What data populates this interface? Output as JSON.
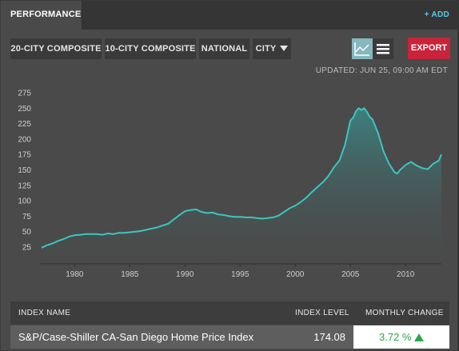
{
  "header": {
    "tab_label": "PERFORMANCE",
    "add_label": "+ ADD"
  },
  "toolbar": {
    "btn_20city": "20-CITY COMPOSITE",
    "btn_10city": "10-CITY COMPOSITE",
    "btn_national": "NATIONAL",
    "btn_city": "CITY",
    "view_chart_icon": "line-chart-icon",
    "view_list_icon": "list-icon",
    "export_label": "EXPORT"
  },
  "updated_text": "UPDATED: JUN 25, 09:00 AM EDT",
  "colors": {
    "line": "#3cc6c0",
    "export": "#c9243a",
    "positive": "#2aa74a",
    "accent": "#5ec8e8"
  },
  "chart_data": {
    "type": "area",
    "x_ticks": [
      "1980",
      "1985",
      "1990",
      "1995",
      "2000",
      "2005",
      "2010"
    ],
    "y_ticks": [
      "25",
      "50",
      "75",
      "100",
      "125",
      "150",
      "175",
      "200",
      "225",
      "250",
      "275"
    ],
    "xlim": [
      1977,
      2013.25
    ],
    "ylim": [
      20,
      275
    ],
    "series": [
      {
        "x": [
          1977,
          1977.5,
          1978,
          1978.5,
          1979,
          1979.5,
          1980,
          1980.5,
          1981,
          1981.5,
          1982,
          1982.5,
          1983,
          1983.5,
          1984,
          1984.5,
          1985,
          1985.5,
          1986,
          1986.5,
          1987,
          1987.5,
          1988,
          1988.5,
          1989,
          1989.5,
          1990,
          1990.5,
          1991,
          1991.5,
          1992,
          1992.5,
          1993,
          1993.5,
          1994,
          1994.5,
          1995,
          1995.5,
          1996,
          1996.5,
          1997,
          1997.5,
          1998,
          1998.5,
          1999,
          1999.5,
          2000,
          2000.5,
          2001,
          2001.5,
          2002,
          2002.5,
          2003,
          2003.5,
          2004,
          2004.5,
          2005,
          2005.25,
          2005.5,
          2005.75,
          2006,
          2006.25,
          2006.5,
          2006.75,
          2007,
          2007.5,
          2008,
          2008.5,
          2009,
          2009.25,
          2009.5,
          2010,
          2010.5,
          2011,
          2011.5,
          2012,
          2012.5,
          2013,
          2013.25
        ],
        "y": [
          24,
          28,
          31,
          35,
          38,
          42,
          44,
          45,
          46,
          46,
          46,
          45,
          47,
          46,
          48,
          48,
          49,
          50,
          51,
          53,
          55,
          57,
          60,
          63,
          70,
          77,
          83,
          85,
          86,
          82,
          80,
          81,
          78,
          77,
          75,
          74,
          74,
          73,
          73,
          72,
          71,
          72,
          73,
          76,
          82,
          88,
          92,
          98,
          105,
          114,
          122,
          130,
          140,
          154,
          165,
          190,
          230,
          235,
          245,
          250,
          247,
          250,
          244,
          236,
          232,
          210,
          180,
          160,
          146,
          144,
          150,
          158,
          163,
          157,
          153,
          151,
          160,
          165,
          175
        ]
      }
    ]
  },
  "table": {
    "headers": {
      "name": "INDEX NAME",
      "level": "INDEX LEVEL",
      "change": "MONTHLY CHANGE"
    },
    "row": {
      "name": "S&P/Case-Shiller CA-San Diego Home Price Index",
      "level": "174.08",
      "change": "3.72 %"
    }
  }
}
